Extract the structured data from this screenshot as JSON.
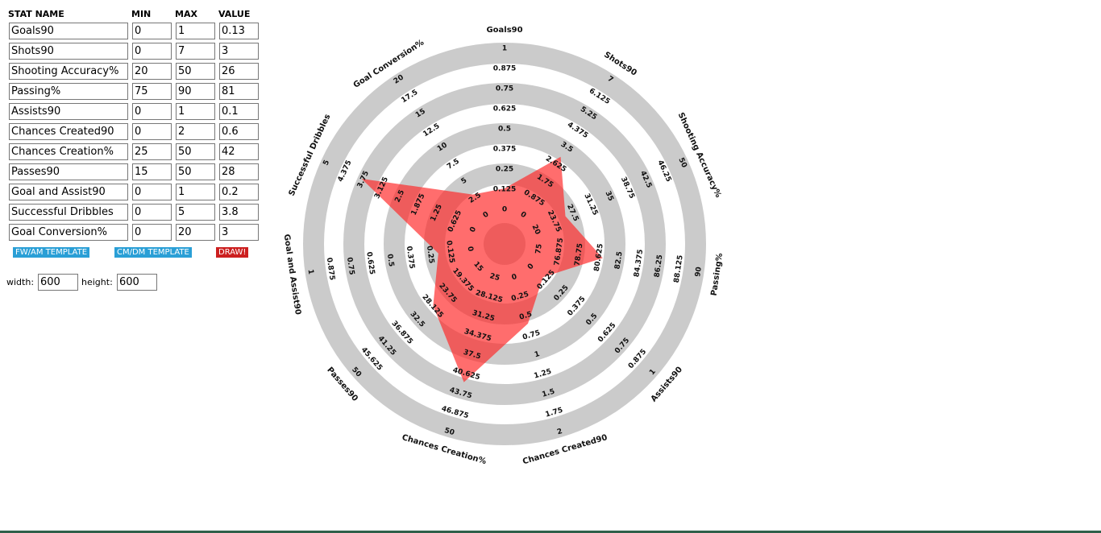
{
  "table": {
    "headers": [
      "STAT NAME",
      "MIN",
      "MAX",
      "VALUE"
    ],
    "rows": [
      {
        "name": "Goals90",
        "min": 0,
        "max": 1,
        "value": 0.13
      },
      {
        "name": "Shots90",
        "min": 0,
        "max": 7,
        "value": 3
      },
      {
        "name": "Shooting Accuracy%",
        "min": 20,
        "max": 50,
        "value": 26
      },
      {
        "name": "Passing%",
        "min": 75,
        "max": 90,
        "value": 81
      },
      {
        "name": "Assists90",
        "min": 0,
        "max": 1,
        "value": 0.1
      },
      {
        "name": "Chances Created90",
        "min": 0,
        "max": 2,
        "value": 0.6
      },
      {
        "name": "Chances Creation%",
        "min": 25,
        "max": 50,
        "value": 42
      },
      {
        "name": "Passes90",
        "min": 15,
        "max": 50,
        "value": 28
      },
      {
        "name": "Goal and Assist90",
        "min": 0,
        "max": 1,
        "value": 0.2
      },
      {
        "name": "Successful Dribbles",
        "min": 0,
        "max": 5,
        "value": 3.8
      },
      {
        "name": "Goal Conversion%",
        "min": 0,
        "max": 20,
        "value": 3
      }
    ]
  },
  "buttons": [
    "FW/AM TEMPLATE",
    "CM/DM TEMPLATE",
    "DRAW!"
  ],
  "size": {
    "width_label": "width:",
    "width": 600,
    "height_label": "height:",
    "height": 600
  },
  "radar": {
    "axes": [
      {
        "name": "Goals90",
        "ticks": [
          0,
          0.125,
          0.25,
          0.375,
          0.5,
          0.625,
          0.75,
          0.875,
          1
        ]
      },
      {
        "name": "Shots90",
        "ticks": [
          0,
          0.875,
          1.75,
          2.625,
          3.5,
          4.375,
          5.25,
          6.125,
          7
        ]
      },
      {
        "name": "Shooting Accuracy%",
        "ticks": [
          20,
          23.75,
          27.5,
          31.25,
          35,
          38.75,
          42.5,
          46.25,
          50
        ]
      },
      {
        "name": "Passing%",
        "ticks": [
          75,
          76.875,
          78.75,
          80.625,
          82.5,
          84.375,
          86.25,
          88.125,
          90
        ]
      },
      {
        "name": "Assists90",
        "ticks": [
          0,
          0.125,
          0.25,
          0.375,
          0.5,
          0.625,
          0.75,
          0.875,
          1
        ]
      },
      {
        "name": "Chances Created90",
        "ticks": [
          0,
          0.25,
          0.5,
          0.75,
          1,
          1.25,
          1.5,
          1.75,
          2
        ]
      },
      {
        "name": "Chances Creation%",
        "ticks": [
          25,
          28.125,
          31.25,
          34.375,
          37.5,
          40.625,
          43.75,
          46.875,
          50
        ]
      },
      {
        "name": "Passes90",
        "ticks": [
          15,
          19.375,
          23.75,
          28.125,
          32.5,
          36.875,
          41.25,
          45.625,
          50
        ]
      },
      {
        "name": "Goal and Assist90",
        "ticks": [
          0,
          0.125,
          0.25,
          0.375,
          0.5,
          0.625,
          0.75,
          0.875,
          1
        ]
      },
      {
        "name": "Successful Dribbles",
        "ticks": [
          0,
          0.625,
          1.25,
          1.875,
          2.5,
          3.125,
          3.75,
          4.375,
          5
        ]
      },
      {
        "name": "Goal Conversion%",
        "ticks": [
          0,
          2.5,
          5,
          7.5,
          10,
          12.5,
          15,
          17.5,
          20
        ]
      }
    ]
  }
}
